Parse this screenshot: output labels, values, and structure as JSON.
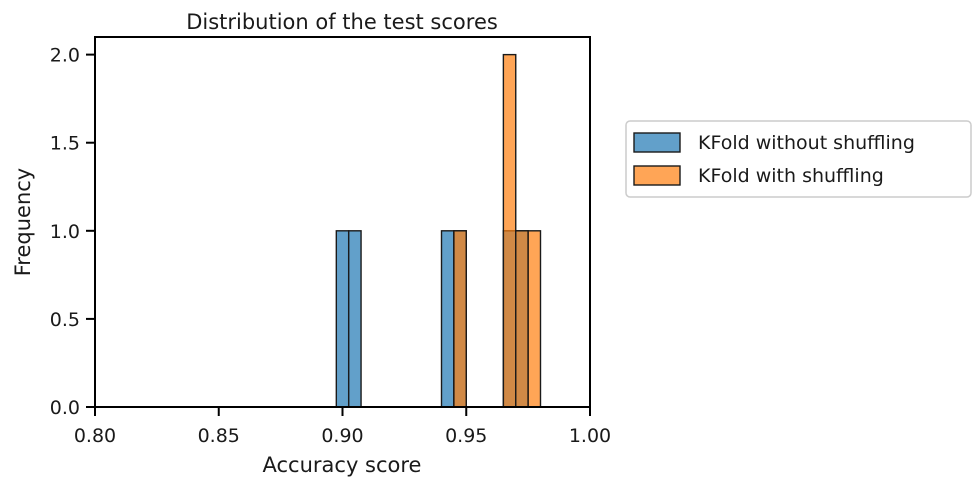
{
  "chart_data": {
    "type": "bar",
    "title": "Distribution of the test scores",
    "xlabel": "Accuracy score",
    "ylabel": "Frequency",
    "xlim": [
      0.8,
      1.0
    ],
    "ylim": [
      0,
      2.1
    ],
    "x_ticks": [
      "0.80",
      "0.85",
      "0.90",
      "0.95",
      "1.00"
    ],
    "y_ticks": [
      "0.0",
      "0.5",
      "1.0",
      "1.5",
      "2.0"
    ],
    "grid": false,
    "legend_position": "outside-right",
    "bin_width": 0.005,
    "series": [
      {
        "name": "KFold without shuffling",
        "color": "#1f77b4",
        "bins": [
          {
            "start": 0.8975,
            "end": 0.9025,
            "count": 1
          },
          {
            "start": 0.9025,
            "end": 0.9075,
            "count": 1
          },
          {
            "start": 0.94,
            "end": 0.945,
            "count": 1
          },
          {
            "start": 0.945,
            "end": 0.95,
            "count": 1
          },
          {
            "start": 0.965,
            "end": 0.97,
            "count": 1
          },
          {
            "start": 0.97,
            "end": 0.975,
            "count": 1
          }
        ]
      },
      {
        "name": "KFold with shuffling",
        "color": "#ff7f0e",
        "bins": [
          {
            "start": 0.945,
            "end": 0.95,
            "count": 1
          },
          {
            "start": 0.965,
            "end": 0.97,
            "count": 2
          },
          {
            "start": 0.97,
            "end": 0.975,
            "count": 1
          },
          {
            "start": 0.975,
            "end": 0.98,
            "count": 1
          }
        ]
      }
    ]
  }
}
